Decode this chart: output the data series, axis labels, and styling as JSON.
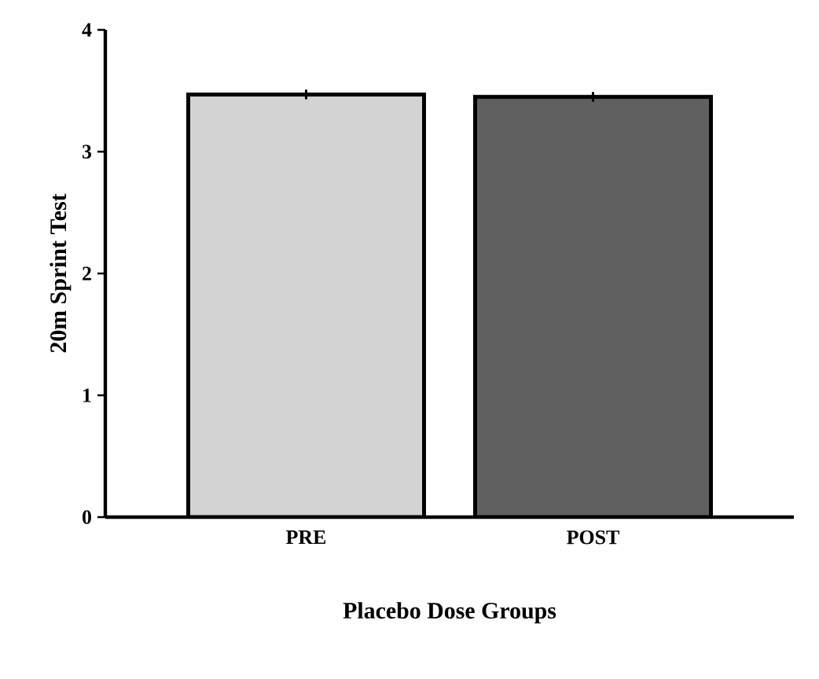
{
  "chart_data": {
    "type": "bar",
    "xlabel": "Placebo Dose Groups",
    "ylabel": "20m Sprint Test",
    "categories": [
      "PRE",
      "POST"
    ],
    "values": [
      3.47,
      3.45
    ],
    "errors": [
      0.04,
      0.04
    ],
    "colors": [
      "#d3d3d3",
      "#606060"
    ],
    "ylim": [
      0,
      4
    ],
    "yticks": [
      0,
      1,
      2,
      3,
      4
    ],
    "grid": false
  }
}
